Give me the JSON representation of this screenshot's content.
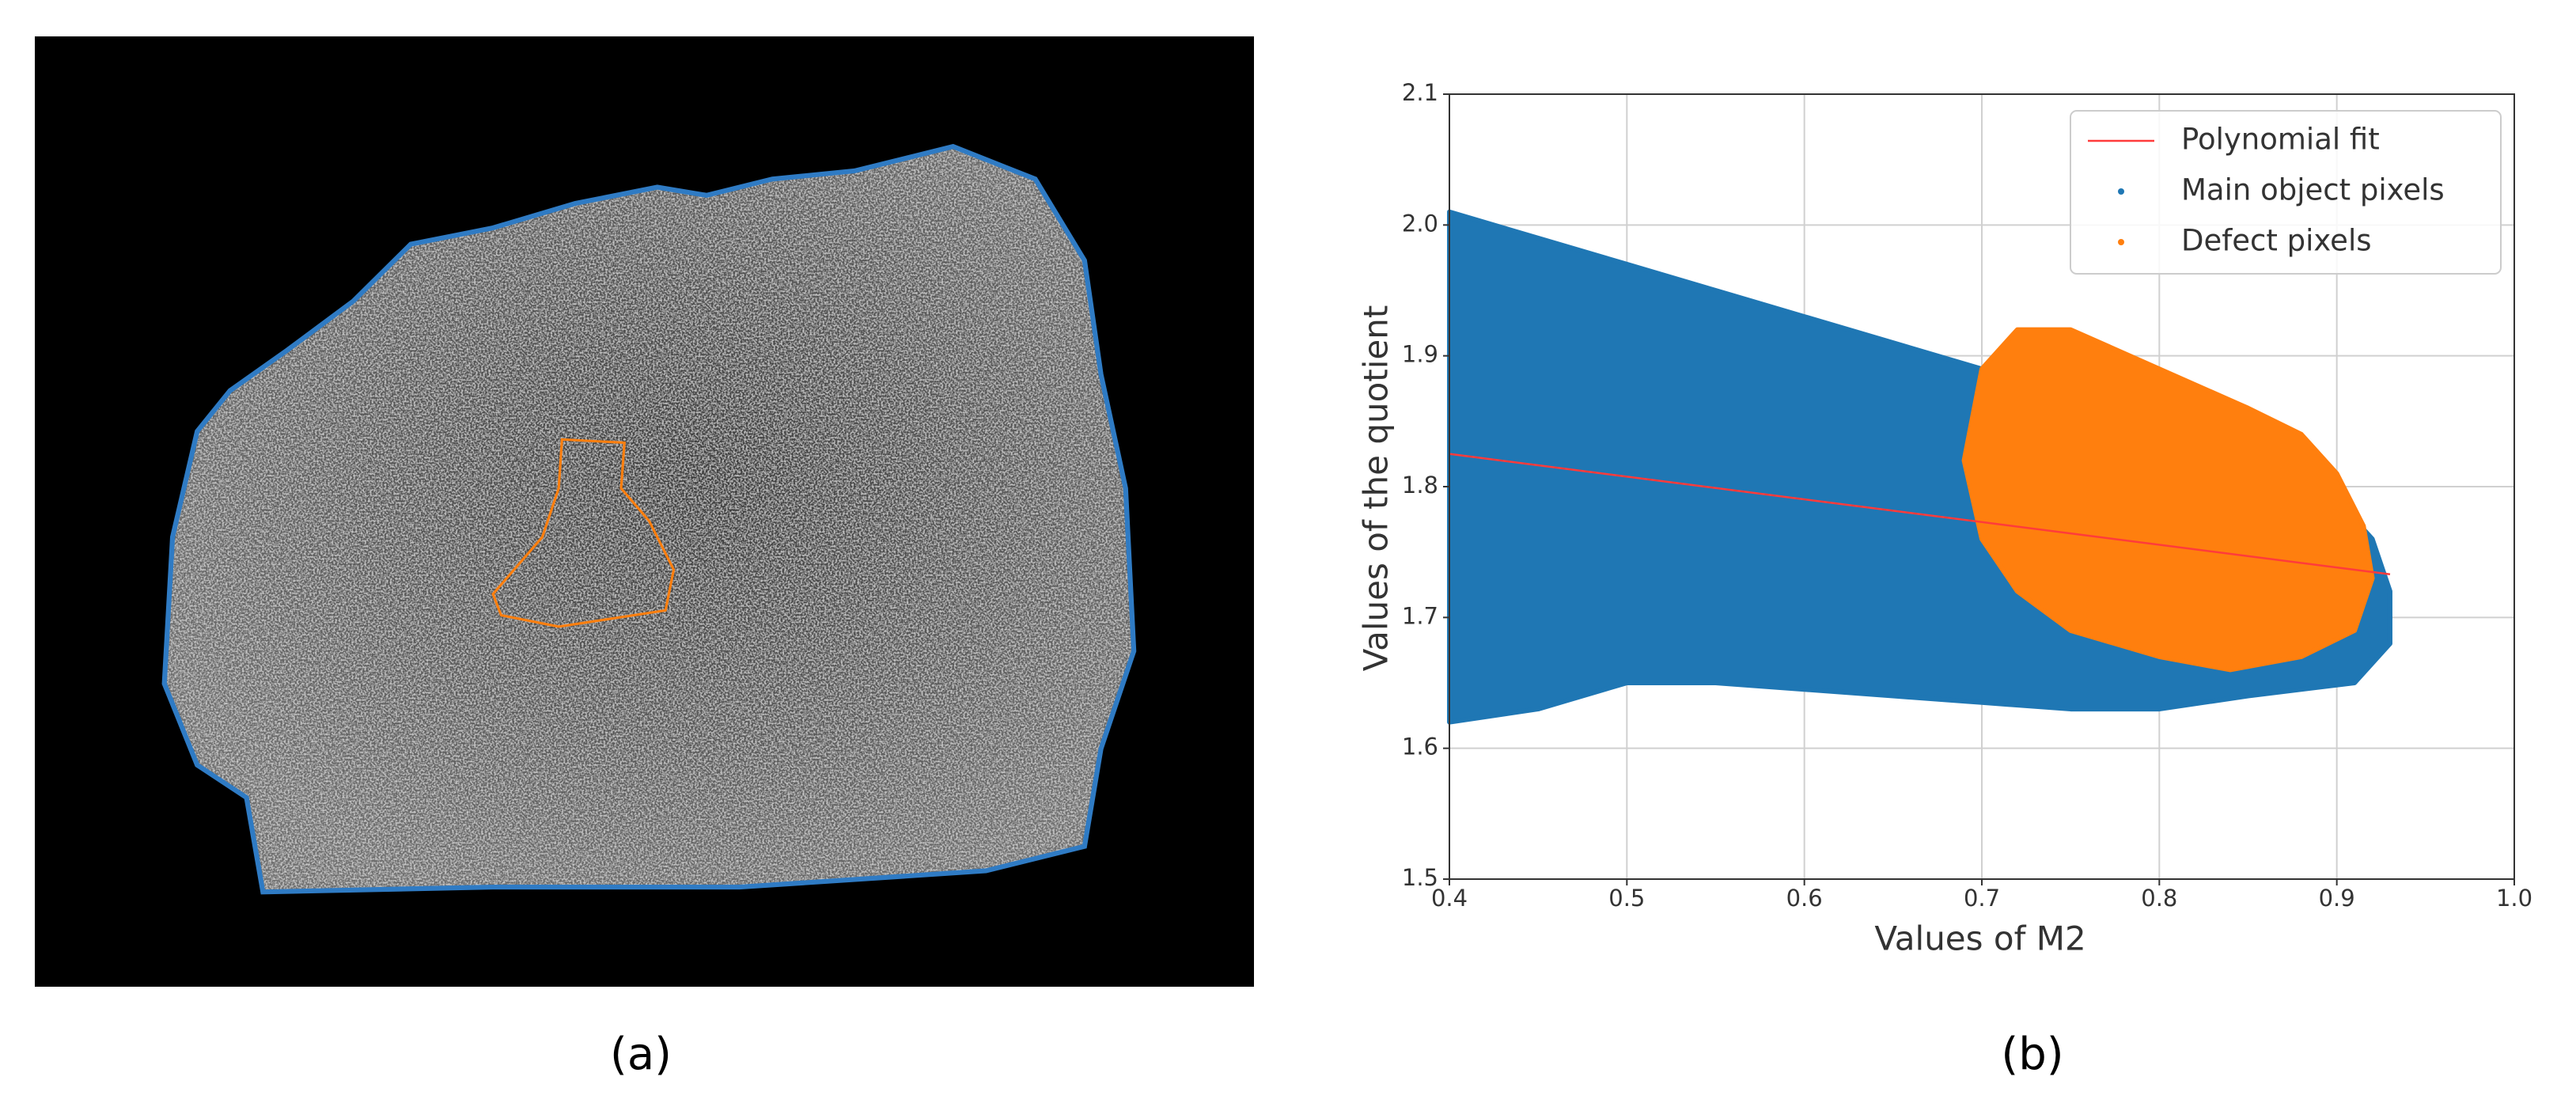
{
  "panel_labels": [
    "(a)",
    "(b)"
  ],
  "chart_data": {
    "type": "scatter",
    "xlabel": "Values of M2",
    "ylabel": "Values of the quotient",
    "xlim": [
      0.4,
      1.0
    ],
    "ylim": [
      1.5,
      2.1
    ],
    "xticks": [
      0.4,
      0.5,
      0.6,
      0.7,
      0.8,
      0.9,
      {
        "value": 1,
        "label": "1.0"
      }
    ],
    "yticks": [
      1.5,
      1.6,
      1.7,
      1.8,
      1.9,
      {
        "value": 2,
        "label": "2.0"
      },
      2.1
    ],
    "grid": true,
    "legend": "upper right",
    "series": [
      {
        "name": "Polynomial fit",
        "type": "line",
        "color": "#ff3b3b",
        "x": [
          0.4,
          0.93
        ],
        "values": [
          1.825,
          1.733
        ]
      },
      {
        "name": "Main object pixels",
        "type": "scatter",
        "color": "#1f77b4",
        "x": [
          0.4,
          0.45,
          0.5,
          0.55,
          0.6,
          0.65,
          0.7,
          0.75,
          0.8,
          0.85,
          0.88,
          0.9,
          0.92,
          0.93,
          0.93,
          0.91,
          0.85,
          0.8,
          0.75,
          0.7,
          0.65,
          0.6,
          0.55,
          0.5,
          0.45,
          0.4
        ],
        "values": [
          2.01,
          1.99,
          1.97,
          1.95,
          1.93,
          1.91,
          1.89,
          1.87,
          1.86,
          1.84,
          1.82,
          1.79,
          1.76,
          1.72,
          1.68,
          1.65,
          1.64,
          1.63,
          1.63,
          1.635,
          1.64,
          1.645,
          1.65,
          1.65,
          1.63,
          1.62
        ]
      },
      {
        "name": "Defect pixels",
        "type": "scatter",
        "color": "#ff7f0e",
        "x": [
          0.7,
          0.72,
          0.75,
          0.8,
          0.85,
          0.88,
          0.9,
          0.915,
          0.92,
          0.91,
          0.88,
          0.84,
          0.8,
          0.75,
          0.72,
          0.7,
          0.69
        ],
        "values": [
          1.89,
          1.92,
          1.92,
          1.89,
          1.86,
          1.84,
          1.81,
          1.77,
          1.73,
          1.69,
          1.67,
          1.66,
          1.67,
          1.69,
          1.72,
          1.76,
          1.82
        ]
      }
    ]
  }
}
